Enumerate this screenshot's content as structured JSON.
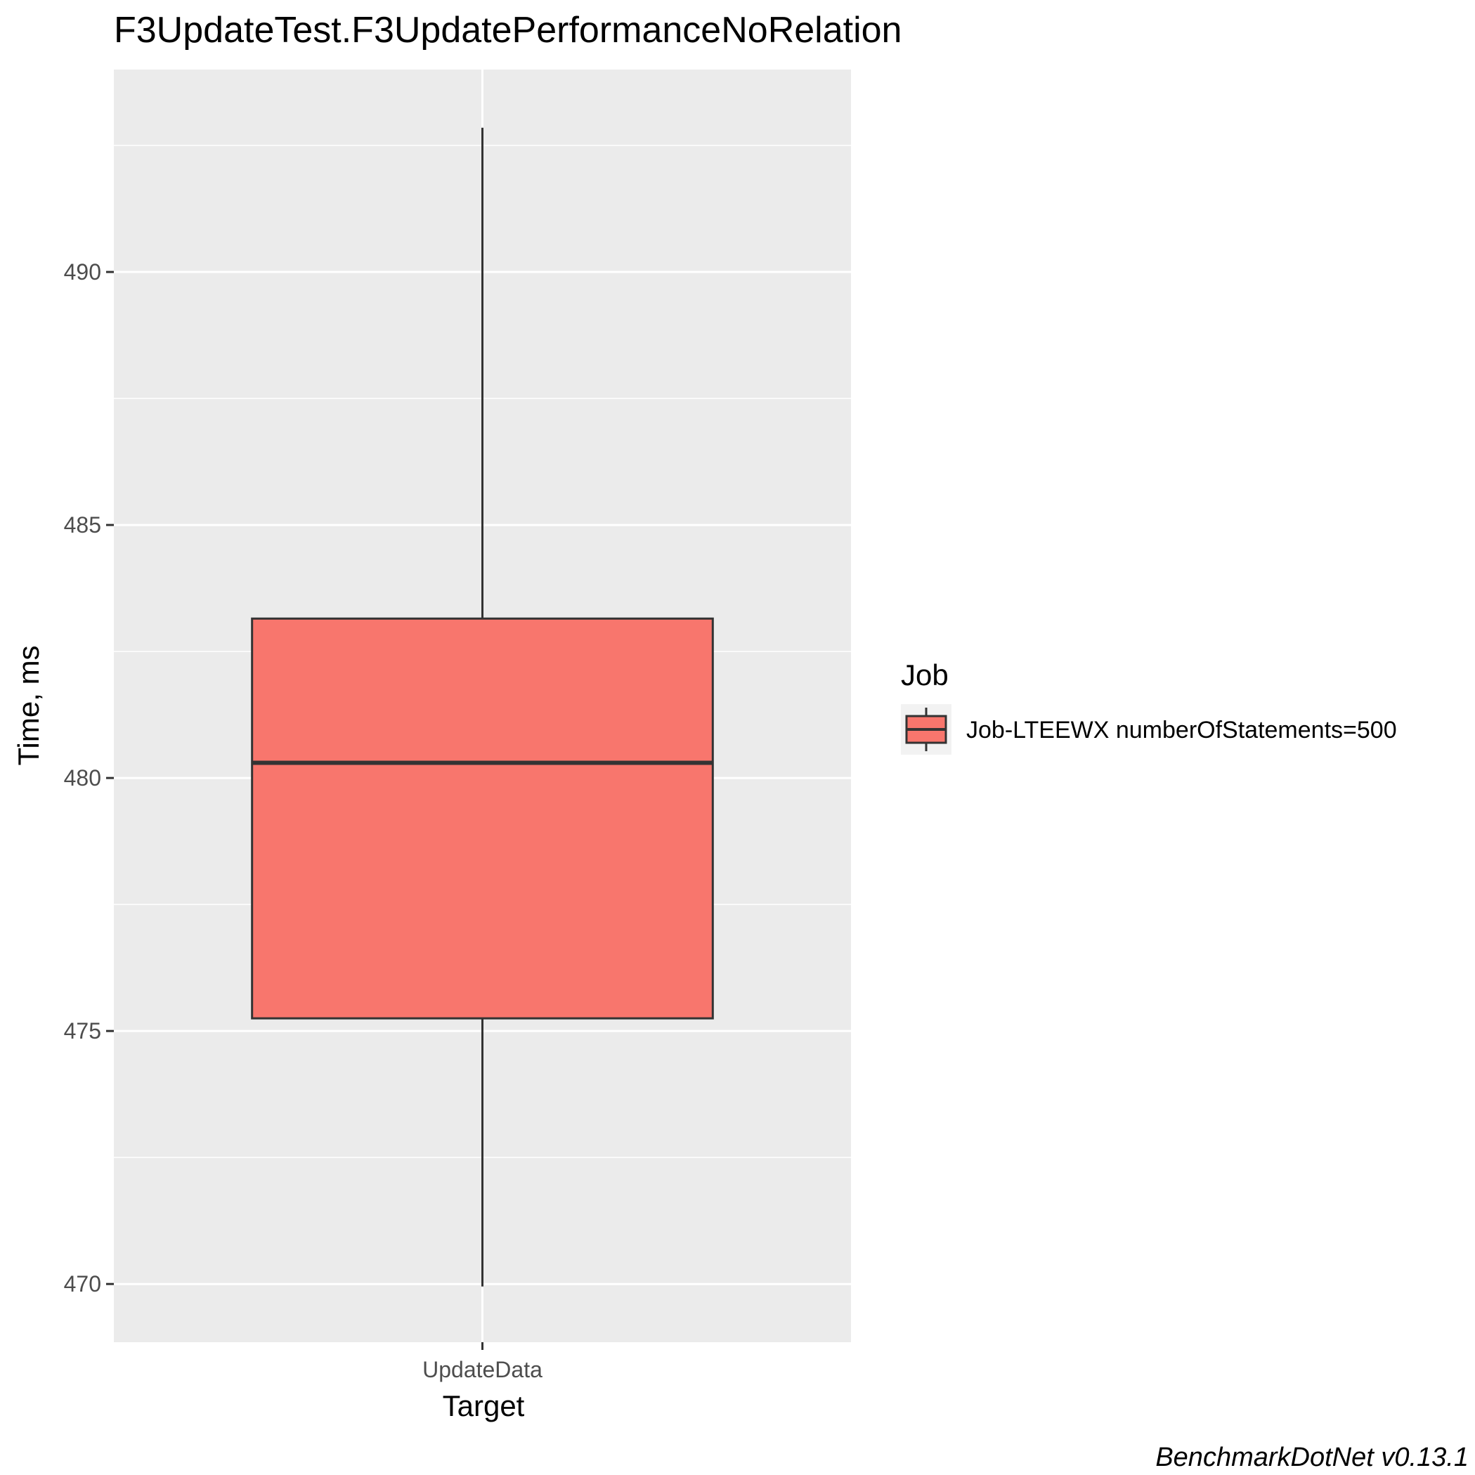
{
  "chart_data": {
    "type": "box",
    "title": "F3UpdateTest.F3UpdatePerformanceNoRelation",
    "xlabel": "Target",
    "ylabel": "Time, ms",
    "categories": [
      "UpdateData"
    ],
    "series": [
      {
        "name": "Job-LTEEWX numberOfStatements=500",
        "color": "#F8766D",
        "boxes": [
          {
            "category": "UpdateData",
            "min": 469.95,
            "q1": 475.25,
            "median": 480.3,
            "q3": 483.15,
            "max": 492.85
          }
        ]
      }
    ],
    "ylim": [
      468.85,
      494.0
    ],
    "yticks": [
      470,
      475,
      480,
      485,
      490
    ],
    "ytick_labels": [
      "470",
      "475",
      "480",
      "485",
      "490"
    ],
    "grid": true,
    "legend": {
      "title": "Job",
      "position": "right"
    },
    "caption": "BenchmarkDotNet v0.13.1",
    "panel_background": "#EBEBEB",
    "grid_color": "#FFFFFF"
  }
}
